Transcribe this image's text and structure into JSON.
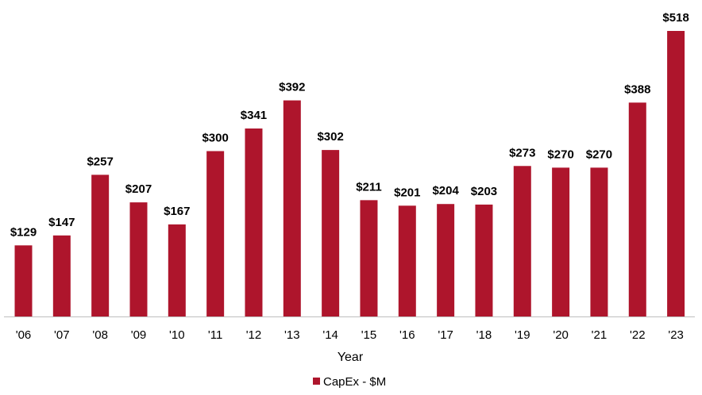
{
  "chart_data": {
    "type": "bar",
    "categories": [
      "'06",
      "'07",
      "'08",
      "'09",
      "'10",
      "'11",
      "'12",
      "'13",
      "'14",
      "'15",
      "'16",
      "'17",
      "'18",
      "'19",
      "'20",
      "'21",
      "'22",
      "'23"
    ],
    "series": [
      {
        "name": "CapEx - $M",
        "values": [
          129,
          147,
          257,
          207,
          167,
          300,
          341,
          392,
          302,
          211,
          201,
          204,
          203,
          273,
          270,
          270,
          388,
          518
        ],
        "labels": [
          "$129",
          "$147",
          "$257",
          "$207",
          "$167",
          "$300",
          "$341",
          "$392",
          "$302",
          "$211",
          "$201",
          "$204",
          "$203",
          "$273",
          "$270",
          "$270",
          "$388",
          "$518"
        ]
      }
    ],
    "xlabel": "Year",
    "ylabel": "",
    "ylim": [
      0,
      518
    ],
    "grid": false,
    "legend": "bottom-center",
    "bar_color": "#AE152C"
  }
}
